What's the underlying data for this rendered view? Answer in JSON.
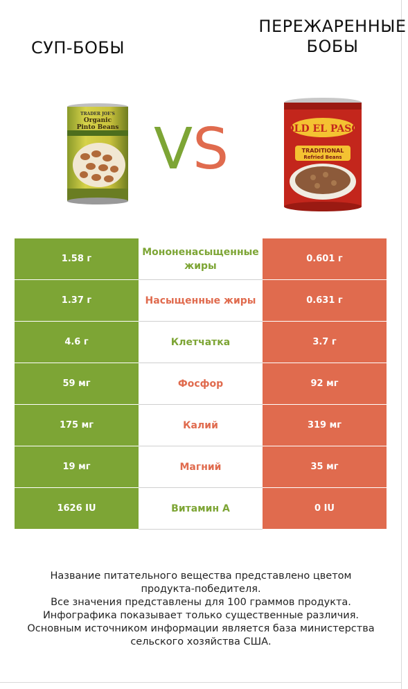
{
  "products": {
    "left": {
      "name": "СУП-БОБЫ",
      "color": "#7da535",
      "icon": "pinto-beans-can-image"
    },
    "right": {
      "name_line1": "ПЕРЕЖАРЕННЫЕ",
      "name_line2": "БОБЫ",
      "color": "#e06b4e",
      "icon": "refried-beans-can-image"
    }
  },
  "vs": {
    "v": "V",
    "s": "S"
  },
  "rows": [
    {
      "left": "1.58 г",
      "label": "Мононенасыщенные жиры",
      "right": "0.601 г",
      "winner": "left"
    },
    {
      "left": "1.37 г",
      "label": "Насыщенные жиры",
      "right": "0.631 г",
      "winner": "right"
    },
    {
      "left": "4.6 г",
      "label": "Клетчатка",
      "right": "3.7 г",
      "winner": "left"
    },
    {
      "left": "59 мг",
      "label": "Фосфор",
      "right": "92 мг",
      "winner": "right"
    },
    {
      "left": "175 мг",
      "label": "Калий",
      "right": "319 мг",
      "winner": "right"
    },
    {
      "left": "19 мг",
      "label": "Магний",
      "right": "35 мг",
      "winner": "right"
    },
    {
      "left": "1626 IU",
      "label": "Витамин A",
      "right": "0 IU",
      "winner": "left"
    }
  ],
  "footnote": [
    "Название питательного вещества представлено цветом",
    "продукта-победителя.",
    "Все значения представлены для 100 граммов продукта.",
    "Инфографика показывает только существенные различия.",
    "Основным источником информации является база министерства",
    "сельского хозяйства США."
  ]
}
